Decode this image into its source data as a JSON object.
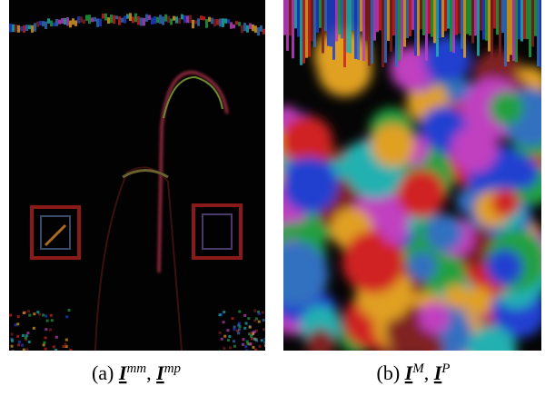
{
  "figure": {
    "panels": [
      {
        "label": "(a)",
        "separator": ",",
        "terms": [
          {
            "base": "I",
            "sup": "mm"
          },
          {
            "base": "I",
            "sup": "mp"
          }
        ]
      },
      {
        "label": "(b)",
        "separator": ",",
        "terms": [
          {
            "base": "I",
            "sup": "M"
          },
          {
            "base": "I",
            "sup": "P"
          }
        ]
      }
    ]
  }
}
